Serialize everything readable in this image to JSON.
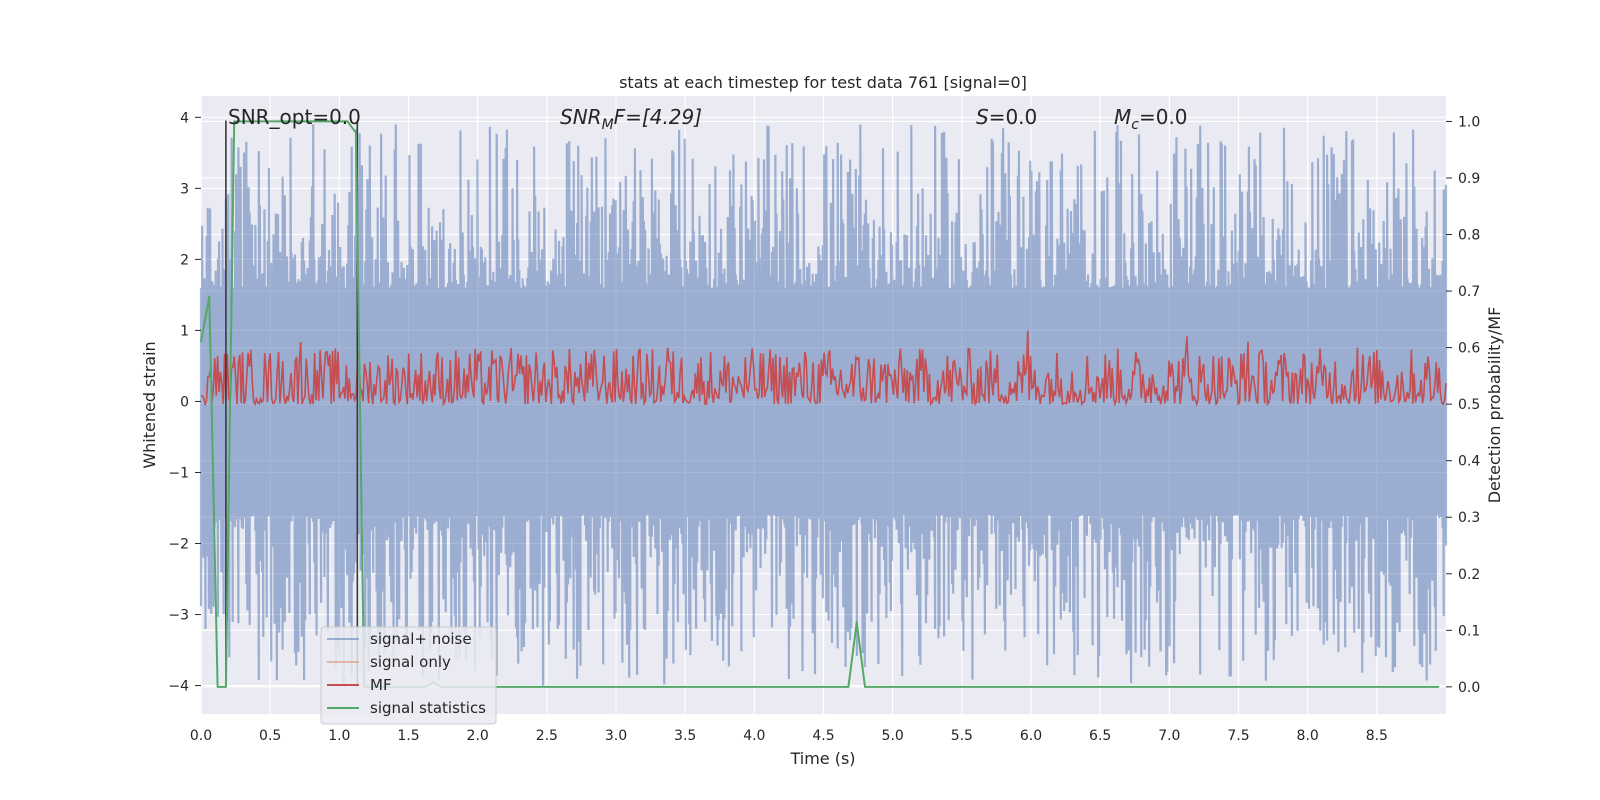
{
  "chart_data": {
    "type": "line",
    "title": "stats at each timestep for test data 761 [signal=0]",
    "xlabel": "Time (s)",
    "ylabel": "Whitened strain",
    "y2label": "Detection probability/MF",
    "xlim": [
      0.0,
      9.0
    ],
    "ylim": [
      -4.4,
      4.3
    ],
    "y2lim": [
      -0.048,
      1.045
    ],
    "xticks": [
      "0.0",
      "0.5",
      "1.0",
      "1.5",
      "2.0",
      "2.5",
      "3.0",
      "3.5",
      "4.0",
      "4.5",
      "5.0",
      "5.5",
      "6.0",
      "6.5",
      "7.0",
      "7.5",
      "8.0",
      "8.5"
    ],
    "yticks": [
      "4",
      "3",
      "2",
      "1",
      "0",
      "−1",
      "−2",
      "−3",
      "−4"
    ],
    "y2ticks": [
      "1.0",
      "0.9",
      "0.8",
      "0.7",
      "0.6",
      "0.5",
      "0.4",
      "0.3",
      "0.2",
      "0.1",
      "0.0"
    ],
    "grid": true,
    "legend_location": "lower-left",
    "annotations": {
      "snr_opt": "SNR_opt=0.0",
      "snr_mf_base": "SNR",
      "snr_mf_sub": "M",
      "snr_mf_rest": "F=[4.29]",
      "s_label": "S",
      "s_value": "=0.0",
      "mc_base": "M",
      "mc_sub": "c",
      "mc_value": "=0.0"
    },
    "vertical_markers": [
      0.18,
      1.13
    ],
    "series": [
      {
        "name": "signal+ noise",
        "color": "#4c72b0",
        "axis": "left",
        "style": "noise",
        "x_range": [
          0.0,
          9.0
        ],
        "typical_peak": [
          1.6,
          3.9
        ],
        "typical_trough": [
          -1.6,
          -4.0
        ],
        "peaks": [
          [
            0.25,
            3.2
          ],
          [
            0.61,
            2.9
          ],
          [
            0.99,
            2.8
          ],
          [
            1.41,
            3.9
          ],
          [
            2.25,
            3.0
          ],
          [
            2.73,
            3.6
          ],
          [
            3.5,
            3.7
          ],
          [
            4.31,
            3.0
          ],
          [
            5.22,
            3.0
          ],
          [
            5.79,
            3.5
          ],
          [
            6.04,
            3.1
          ],
          [
            6.73,
            3.2
          ],
          [
            7.51,
            3.2
          ],
          [
            8.25,
            3.2
          ],
          [
            8.66,
            3.0
          ]
        ],
        "troughs": [
          [
            0.03,
            -3.2
          ],
          [
            0.61,
            -3.1
          ],
          [
            1.6,
            -3.2
          ],
          [
            2.47,
            -4.0
          ],
          [
            2.58,
            -3.2
          ],
          [
            3.2,
            -3.2
          ],
          [
            3.58,
            -3.2
          ],
          [
            4.56,
            -3.4
          ],
          [
            4.85,
            -3.1
          ],
          [
            6.8,
            -3.6
          ],
          [
            7.36,
            -3.5
          ],
          [
            7.89,
            -3.3
          ],
          [
            8.37,
            -3.2
          ],
          [
            8.91,
            -2.5
          ]
        ]
      },
      {
        "name": "signal only",
        "color": "#dd8452",
        "axis": "left",
        "x": [],
        "y": []
      },
      {
        "name": "MF",
        "color": "#c44e52",
        "axis": "right",
        "style": "noise",
        "x_range": [
          0.0,
          9.0
        ],
        "baseline": 0.52,
        "typical_range": [
          0.5,
          0.6
        ],
        "peaks": [
          [
            0.72,
            0.61
          ],
          [
            3.37,
            0.6
          ],
          [
            5.98,
            0.63
          ],
          [
            7.13,
            0.62
          ],
          [
            7.57,
            0.61
          ],
          [
            8.36,
            0.6
          ]
        ]
      },
      {
        "name": "signal statistics",
        "color": "#55a868",
        "axis": "right",
        "x": [
          0.0,
          0.06,
          0.12,
          0.18,
          0.24,
          1.06,
          1.12,
          1.18,
          1.24,
          1.62,
          1.68,
          1.74,
          4.68,
          4.74,
          4.8,
          8.95
        ],
        "y": [
          0.61,
          0.69,
          0.0,
          0.0,
          1.0,
          1.0,
          0.98,
          0.0,
          0.0,
          0.0,
          0.008,
          0.0,
          0.0,
          0.114,
          0.0,
          0.0
        ]
      }
    ]
  }
}
